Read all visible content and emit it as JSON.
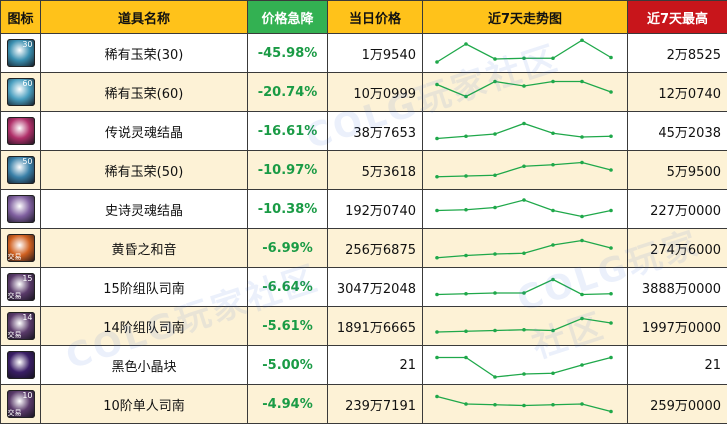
{
  "headers": {
    "icon": "图标",
    "name": "道具名称",
    "drop": "价格急降",
    "price": "当日价格",
    "trend": "近7天走势图",
    "high": "近7天最高"
  },
  "colors": {
    "header": "#ffc21a",
    "drop_header": "#33b152",
    "high_header": "#c8151b",
    "drop_text": "#1a9b45",
    "line": "#1fa84a"
  },
  "rows": [
    {
      "name": "稀有玉荣(30)",
      "drop": "-45.98%",
      "price": "1万9540",
      "high": "2万8525",
      "icon": "jade-orb-icon",
      "icon_badge": "30",
      "icon_color": "#3a8fb0",
      "trend": [
        8,
        32,
        12,
        13,
        13,
        37,
        14
      ]
    },
    {
      "name": "稀有玉荣(60)",
      "drop": "-20.74%",
      "price": "10万0999",
      "high": "12万0740",
      "icon": "jade-orb-icon",
      "icon_badge": "60",
      "icon_color": "#4a9fc0",
      "trend": [
        30,
        14,
        34,
        28,
        34,
        34,
        20
      ]
    },
    {
      "name": "传说灵魂结晶",
      "drop": "-16.61%",
      "price": "38万7653",
      "high": "45万2038",
      "icon": "soul-crystal-icon",
      "icon_badge": "",
      "icon_color": "#b0306a",
      "trend": [
        10,
        13,
        16,
        30,
        17,
        12,
        13
      ]
    },
    {
      "name": "稀有玉荣(50)",
      "drop": "-10.97%",
      "price": "5万3618",
      "high": "5万9500",
      "icon": "jade-orb-icon",
      "icon_badge": "50",
      "icon_color": "#3a80a8",
      "trend": [
        11,
        12,
        13,
        25,
        27,
        30,
        20
      ]
    },
    {
      "name": "史诗灵魂结晶",
      "drop": "-10.38%",
      "price": "192万0740",
      "high": "227万0000",
      "icon": "soul-crystal-icon",
      "icon_badge": "",
      "icon_color": "#8060a0",
      "trend": [
        18,
        19,
        22,
        32,
        18,
        10,
        18
      ]
    },
    {
      "name": "黄昏之和音",
      "drop": "-6.99%",
      "price": "256万6875",
      "high": "274万6000",
      "icon": "twilight-harmony-icon",
      "icon_badge": "",
      "icon_color": "#d06020",
      "trend": [
        7,
        10,
        12,
        13,
        24,
        30,
        20
      ]
    },
    {
      "name": "15阶组队司南",
      "drop": "-6.64%",
      "price": "3047万2048",
      "high": "3888万0000",
      "icon": "compass-icon",
      "icon_badge": "15",
      "icon_color": "#5a3a6a",
      "trend": [
        10,
        11,
        12,
        12,
        30,
        10,
        11
      ]
    },
    {
      "name": "14阶组队司南",
      "drop": "-5.61%",
      "price": "1891万6665",
      "high": "1997万0000",
      "icon": "compass-icon",
      "icon_badge": "14",
      "icon_color": "#5a3a6a",
      "trend": [
        12,
        13,
        14,
        15,
        14,
        30,
        24
      ]
    },
    {
      "name": "黑色小晶块",
      "drop": "-5.00%",
      "price": "21",
      "high": "21",
      "icon": "black-crystal-icon",
      "icon_badge": "",
      "icon_color": "#3a1e66",
      "trend": [
        30,
        30,
        4,
        8,
        9,
        20,
        30
      ]
    },
    {
      "name": "10阶单人司南",
      "drop": "-4.94%",
      "price": "239万7191",
      "high": "259万0000",
      "icon": "compass-icon",
      "icon_badge": "10",
      "icon_color": "#5a3a6a",
      "trend": [
        30,
        20,
        19,
        18,
        19,
        20,
        10
      ]
    }
  ],
  "icon_trade_label": "交易",
  "watermark": "COLG玩家社区"
}
